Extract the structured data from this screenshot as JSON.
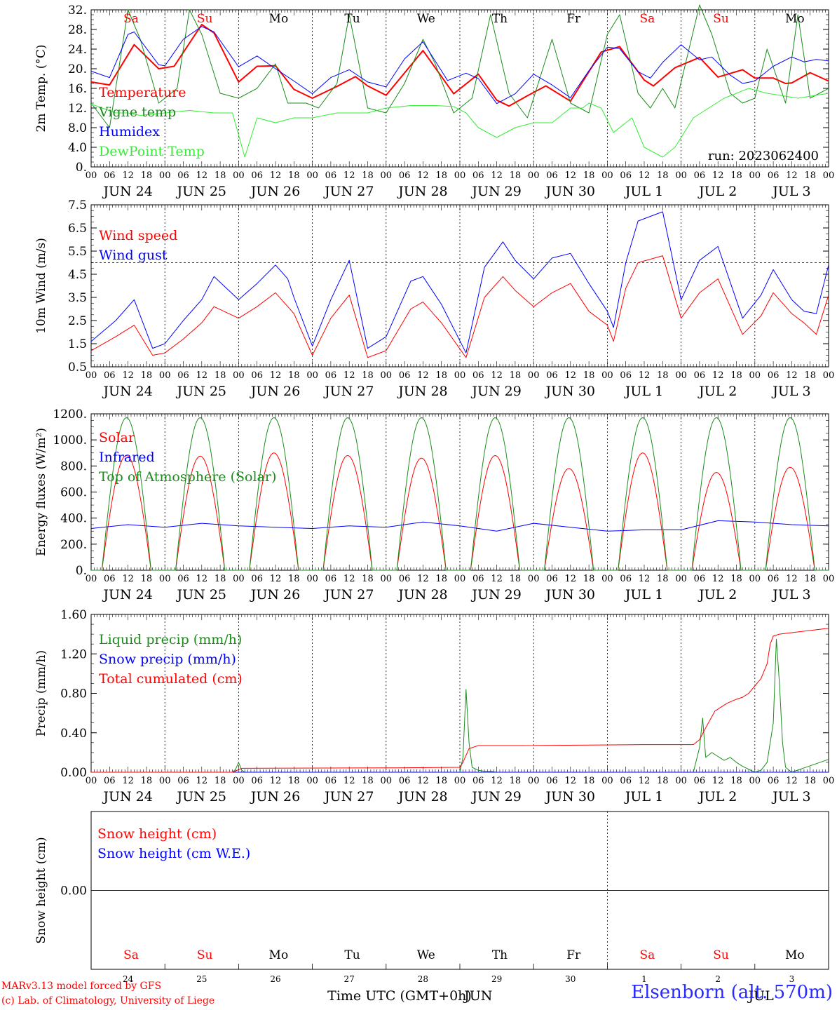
{
  "run_label": "run: 2023062400",
  "hour_ticks": [
    "00",
    "06",
    "12",
    "18"
  ],
  "date_labels": [
    "JUN 24",
    "JUN 25",
    "JUN 26",
    "JUN 27",
    "JUN 28",
    "JUN 29",
    "JUN 30",
    "JUL  1",
    "JUL  2",
    "JUL  3"
  ],
  "weekdays": [
    {
      "label": "Sa",
      "color": "#ff0000"
    },
    {
      "label": "Su",
      "color": "#ff0000"
    },
    {
      "label": "Mo",
      "color": "#000000"
    },
    {
      "label": "Tu",
      "color": "#000000"
    },
    {
      "label": "We",
      "color": "#000000"
    },
    {
      "label": "Th",
      "color": "#000000"
    },
    {
      "label": "Fr",
      "color": "#000000"
    },
    {
      "label": "Sa",
      "color": "#ff0000"
    },
    {
      "label": "Su",
      "color": "#ff0000"
    },
    {
      "label": "Mo",
      "color": "#000000"
    }
  ],
  "day_numbers": [
    "24",
    "25",
    "26",
    "27",
    "28",
    "29",
    "30",
    "1",
    "2",
    "3"
  ],
  "bottom_xlabel": "Time UTC (GMT+0h)",
  "bottom_month_labels": [
    "JUN",
    "JUL"
  ],
  "credits": [
    "MARv3.13 model forced by GFS",
    "(c) Lab. of Climatology, University of Liege"
  ],
  "station": "Elsenborn (alt. 570m)",
  "chart_data": [
    {
      "type": "line",
      "ylabel": "2m Temp. (°C)",
      "ylim": [
        0,
        32
      ],
      "yticks": [
        "0.",
        "4.0",
        "8.0",
        "12.",
        "16.",
        "20.",
        "24.",
        "28.",
        "32."
      ],
      "x_unit": "hours since 2023-06-24 00 UTC",
      "series": [
        {
          "name": "Temperature",
          "color": "#ff0000",
          "width": 2,
          "x": [
            0,
            6,
            14,
            22,
            27,
            36,
            40,
            48,
            54,
            60,
            66,
            72,
            80,
            86,
            90,
            96,
            108,
            118,
            126,
            132,
            136,
            142,
            148,
            156,
            166,
            172,
            180,
            183,
            190,
            198,
            204,
            212,
            216,
            222,
            226,
            228,
            234,
            240
          ],
          "y": [
            17.3,
            16.7,
            24.9,
            20.0,
            20.5,
            29.0,
            27.3,
            17.3,
            20.5,
            20.6,
            15.8,
            14.0,
            16.4,
            18.4,
            16.5,
            14.6,
            23.7,
            14.9,
            18.9,
            13.6,
            12.4,
            14.5,
            16.5,
            13.4,
            23.4,
            24.5,
            17.7,
            16.5,
            20.2,
            22.3,
            18.3,
            19.8,
            18.1,
            18.1,
            17.0,
            17.1,
            19.2,
            17.5
          ]
        },
        {
          "name": "Vigne temp",
          "color": "#1a8c1a",
          "width": 1,
          "x": [
            0,
            6,
            12,
            16,
            22,
            28,
            32,
            36,
            42,
            48,
            54,
            60,
            64,
            70,
            74,
            80,
            84,
            90,
            96,
            102,
            108,
            112,
            118,
            124,
            130,
            136,
            142,
            150,
            156,
            162,
            168,
            172,
            178,
            182,
            186,
            190,
            198,
            202,
            208,
            212,
            216,
            220,
            226,
            230,
            234,
            240
          ],
          "y": [
            13,
            8,
            32,
            26,
            13,
            16,
            32,
            27,
            15,
            14,
            16,
            21,
            13,
            13,
            12,
            17,
            31,
            12,
            11,
            17,
            26,
            21,
            11,
            14,
            31,
            15,
            10,
            26,
            13,
            11,
            27,
            31,
            15,
            12,
            16,
            12,
            33,
            27,
            15,
            13,
            14,
            24,
            13,
            31,
            14,
            16
          ]
        },
        {
          "name": "Humidex",
          "color": "#0000ff",
          "width": 1,
          "x": [
            0,
            6,
            12,
            14,
            22,
            24,
            30,
            36,
            40,
            48,
            54,
            60,
            66,
            72,
            78,
            84,
            90,
            96,
            102,
            108,
            116,
            122,
            126,
            132,
            138,
            144,
            150,
            156,
            162,
            168,
            172,
            178,
            182,
            186,
            192,
            198,
            202,
            208,
            212,
            216,
            222,
            228,
            232,
            236,
            240
          ],
          "y": [
            19.5,
            18.2,
            27.0,
            27.5,
            20.8,
            20.6,
            26.0,
            28.6,
            27.5,
            20.4,
            22.6,
            20.0,
            17.5,
            14.9,
            18.2,
            19.8,
            17.3,
            16.3,
            22.0,
            25.5,
            17.6,
            19.1,
            18.0,
            12.9,
            14.9,
            18.9,
            16.7,
            14.1,
            19.6,
            24.4,
            24.1,
            19.4,
            18.1,
            21.3,
            24.9,
            21.8,
            22.4,
            18.7,
            17.0,
            17.5,
            20.5,
            22.4,
            21.4,
            21.9,
            21.6
          ]
        },
        {
          "name": "DewPoint Temp",
          "color": "#33ee33",
          "width": 1,
          "x": [
            0,
            8,
            12,
            16,
            24,
            32,
            40,
            46,
            50,
            54,
            60,
            66,
            72,
            80,
            90,
            96,
            104,
            112,
            118,
            122,
            126,
            132,
            138,
            144,
            150,
            156,
            160,
            162,
            166,
            170,
            176,
            180,
            186,
            190,
            194,
            196,
            206,
            214,
            220,
            230,
            240
          ],
          "y": [
            12.8,
            11,
            11,
            10.5,
            11,
            11.5,
            11,
            11,
            2,
            10,
            9,
            10,
            10,
            11,
            11,
            12,
            12.5,
            12.5,
            12.3,
            11,
            8,
            6,
            8,
            9,
            9,
            12,
            12,
            13,
            12,
            7,
            10,
            4,
            2,
            4,
            8,
            10,
            14,
            16,
            15,
            14,
            15
          ]
        }
      ]
    },
    {
      "type": "line",
      "ylabel": "10m Wind (m/s)",
      "ylim": [
        0.5,
        7.5
      ],
      "yticks": [
        "0.5",
        "1.5",
        "2.5",
        "3.5",
        "4.5",
        "5.5",
        "6.5",
        "7.5"
      ],
      "reference_line": 5.0,
      "x_unit": "hours since 2023-06-24 00 UTC",
      "series": [
        {
          "name": "Wind speed",
          "color": "#ff0000",
          "width": 1,
          "x": [
            0,
            8,
            14,
            20,
            24,
            30,
            36,
            40,
            48,
            54,
            60,
            66,
            72,
            78,
            84,
            90,
            96,
            104,
            108,
            112,
            114,
            122,
            128,
            134,
            138,
            144,
            150,
            156,
            162,
            168,
            170,
            174,
            178,
            186,
            192,
            198,
            204,
            212,
            218,
            222,
            228,
            232,
            236,
            240
          ],
          "y": [
            1.2,
            1.8,
            2.3,
            1.0,
            1.1,
            1.7,
            2.4,
            3.1,
            2.6,
            3.1,
            3.7,
            2.8,
            1.0,
            2.6,
            3.6,
            0.9,
            1.2,
            3.0,
            3.3,
            2.7,
            2.4,
            0.9,
            3.5,
            4.4,
            3.8,
            3.1,
            3.7,
            4.1,
            2.9,
            2.3,
            1.6,
            3.9,
            5.0,
            5.3,
            2.6,
            3.7,
            4.3,
            1.9,
            2.7,
            3.7,
            2.8,
            2.4,
            1.9,
            3.6
          ]
        },
        {
          "name": "Wind gust",
          "color": "#0000ff",
          "width": 1,
          "x": [
            0,
            8,
            14,
            20,
            24,
            30,
            36,
            40,
            48,
            54,
            60,
            64,
            66,
            72,
            78,
            84,
            90,
            96,
            104,
            108,
            112,
            114,
            122,
            128,
            134,
            138,
            144,
            150,
            156,
            162,
            168,
            170,
            174,
            178,
            186,
            192,
            198,
            204,
            212,
            218,
            222,
            228,
            232,
            236,
            240
          ],
          "y": [
            1.6,
            2.5,
            3.4,
            1.3,
            1.5,
            2.5,
            3.4,
            4.4,
            3.4,
            4.1,
            4.9,
            4.3,
            3.5,
            1.4,
            3.4,
            5.1,
            1.3,
            1.8,
            4.2,
            4.4,
            3.6,
            3.2,
            1.1,
            4.8,
            5.9,
            5.1,
            4.3,
            5.2,
            5.4,
            4.1,
            2.9,
            2.2,
            5.0,
            6.8,
            7.2,
            3.4,
            5.1,
            5.7,
            2.6,
            3.6,
            4.7,
            3.4,
            2.9,
            2.8,
            4.9
          ]
        }
      ]
    },
    {
      "type": "line",
      "ylabel": "Energy fluxes (W/m²)",
      "ylim": [
        0,
        1200
      ],
      "yticks": [
        "0.",
        "200.",
        "400.",
        "600.",
        "800.",
        "1000.",
        "1200."
      ],
      "x_unit": "hours since 2023-06-24 00 UTC",
      "daily_sun": {
        "sunrise_h": 3.5,
        "sunset_h": 19.5
      },
      "series": [
        {
          "name": "Solar",
          "color": "#ff0000",
          "width": 1,
          "daily_peaks": [
            880,
            875,
            900,
            880,
            860,
            880,
            780,
            900,
            750,
            790
          ]
        },
        {
          "name": "Infrared",
          "color": "#0000ff",
          "width": 1,
          "x": [
            0,
            12,
            24,
            36,
            48,
            60,
            72,
            84,
            96,
            108,
            120,
            132,
            144,
            156,
            168,
            180,
            192,
            204,
            216,
            228,
            240
          ],
          "y": [
            320,
            350,
            330,
            360,
            340,
            330,
            320,
            340,
            330,
            370,
            340,
            300,
            360,
            330,
            300,
            310,
            310,
            380,
            370,
            350,
            340
          ]
        },
        {
          "name": "Top of Atmosphere (Solar)",
          "color": "#1a8c1a",
          "width": 1,
          "daily_peaks": [
            1170,
            1170,
            1170,
            1170,
            1170,
            1170,
            1170,
            1170,
            1170,
            1170
          ]
        }
      ]
    },
    {
      "type": "line",
      "ylabel": "Precip (mm/h)",
      "ylim": [
        0,
        1.6
      ],
      "yticks": [
        "0.00",
        "0.40",
        "0.80",
        "1.20",
        "1.60"
      ],
      "x_unit": "hours since 2023-06-24 00 UTC",
      "series": [
        {
          "name": "Liquid precip (mm/h)",
          "color": "#1a8c1a",
          "width": 1,
          "x": [
            0,
            46,
            47,
            48,
            49,
            50,
            120,
            121,
            122,
            123,
            124,
            126,
            128,
            130,
            132,
            196,
            198,
            199,
            200,
            202,
            204,
            206,
            208,
            210,
            212,
            214,
            216,
            218,
            220,
            222,
            223,
            224,
            225,
            226,
            228,
            240
          ],
          "y": [
            0,
            0,
            0.03,
            0.1,
            0.02,
            0,
            0,
            0.15,
            0.84,
            0.3,
            0.05,
            0.02,
            0.01,
            0.01,
            0,
            0,
            0.25,
            0.55,
            0.15,
            0.2,
            0.16,
            0.12,
            0.15,
            0.1,
            0.06,
            0.03,
            0.0,
            0.02,
            0.1,
            0.5,
            1.35,
            0.9,
            0.3,
            0.05,
            0.0,
            0.13
          ]
        },
        {
          "name": "Snow precip (mm/h)",
          "color": "#0000ff",
          "width": 1,
          "x": [
            0,
            240
          ],
          "y": [
            0,
            0
          ]
        },
        {
          "name": "Total cumulated (cm)",
          "color": "#ff0000",
          "width": 1,
          "x": [
            0,
            46,
            49,
            100,
            120,
            121,
            123,
            126,
            140,
            180,
            196,
            198,
            200,
            203,
            207,
            210,
            212,
            214,
            218,
            220,
            221,
            222,
            224,
            240
          ],
          "y": [
            0,
            0,
            0.04,
            0.045,
            0.05,
            0.1,
            0.24,
            0.27,
            0.27,
            0.28,
            0.28,
            0.33,
            0.45,
            0.62,
            0.7,
            0.74,
            0.76,
            0.8,
            0.95,
            1.1,
            1.3,
            1.38,
            1.4,
            1.46
          ]
        }
      ]
    },
    {
      "type": "line",
      "ylabel": "Snow height (cm)",
      "ylim": [
        -1,
        1
      ],
      "yticks": [
        "0.00"
      ],
      "x_unit": "hours since 2023-06-24 00 UTC",
      "series": [
        {
          "name": "Snow height (cm)",
          "color": "#ff0000",
          "width": 1,
          "x": [
            0,
            240
          ],
          "y": [
            0,
            0
          ]
        },
        {
          "name": "Snow height (cm W.E.)",
          "color": "#0000ff",
          "width": 1,
          "x": [
            0,
            240
          ],
          "y": [
            0,
            0
          ]
        }
      ]
    }
  ]
}
